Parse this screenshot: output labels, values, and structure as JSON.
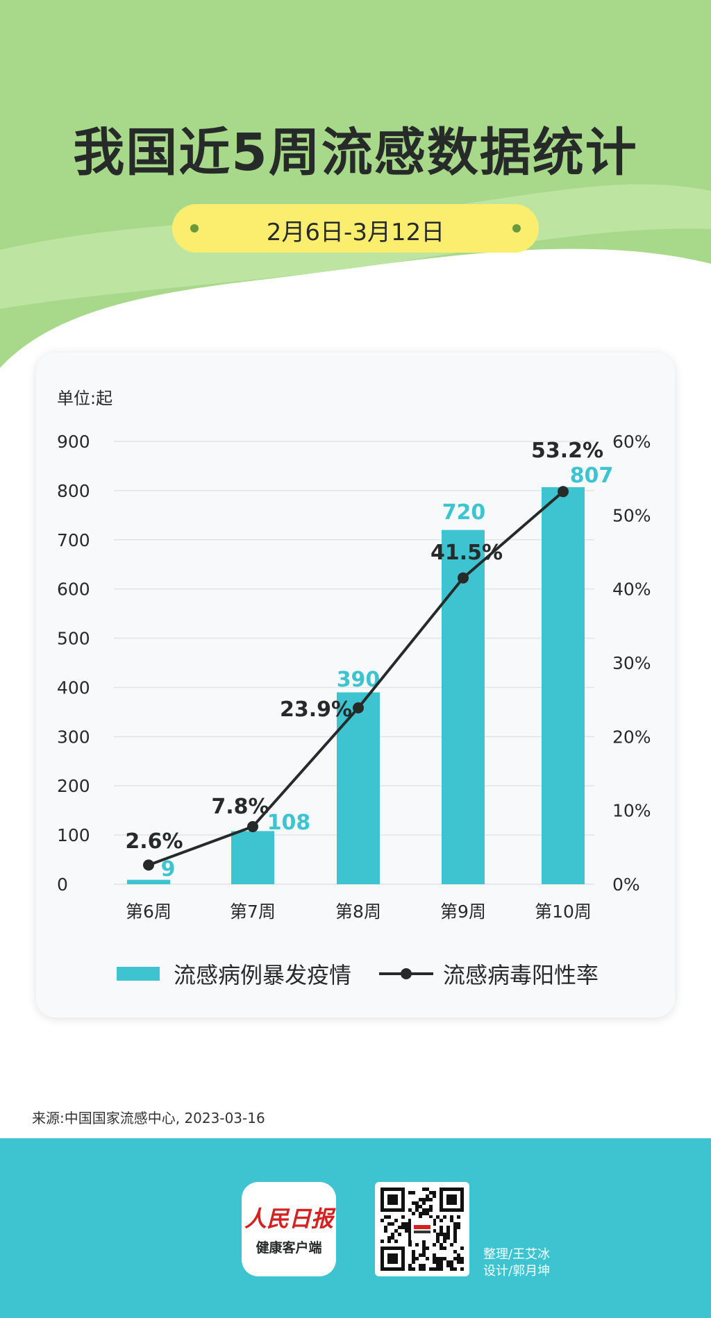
{
  "title": "我国近5周流感数据统计",
  "date_range": "2月6日-3月12日",
  "chart_data": {
    "type": "bar+line",
    "unit_label": "单位:起",
    "categories": [
      "第6周",
      "第7周",
      "第8周",
      "第9周",
      "第10周"
    ],
    "series": [
      {
        "name": "流感病例暴发疫情",
        "type": "bar",
        "axis": "left",
        "values": [
          9,
          108,
          390,
          720,
          807
        ]
      },
      {
        "name": "流感病毒阳性率",
        "type": "line",
        "axis": "right",
        "values": [
          2.6,
          7.8,
          23.9,
          41.5,
          53.2
        ],
        "labels": [
          "2.6%",
          "7.8%",
          "23.9%",
          "41.5%",
          "53.2%"
        ]
      }
    ],
    "y_left": {
      "range": [
        0,
        900
      ],
      "ticks": [
        0,
        100,
        200,
        300,
        400,
        500,
        600,
        700,
        800,
        900
      ]
    },
    "y_right": {
      "range": [
        0,
        60
      ],
      "ticks": [
        "0%",
        "10%",
        "20%",
        "30%",
        "40%",
        "50%",
        "60%"
      ]
    },
    "grid": true,
    "legend_position": "bottom",
    "colors": {
      "bar": "#3ec3d0",
      "line": "#262b2a"
    }
  },
  "source": "来源:中国国家流感中心, 2023-03-16",
  "footer": {
    "logo_name": "人民日报",
    "logo_subtitle": "健康客户端",
    "credits": [
      "整理/王艾冰",
      "设计/郭月坤"
    ]
  }
}
